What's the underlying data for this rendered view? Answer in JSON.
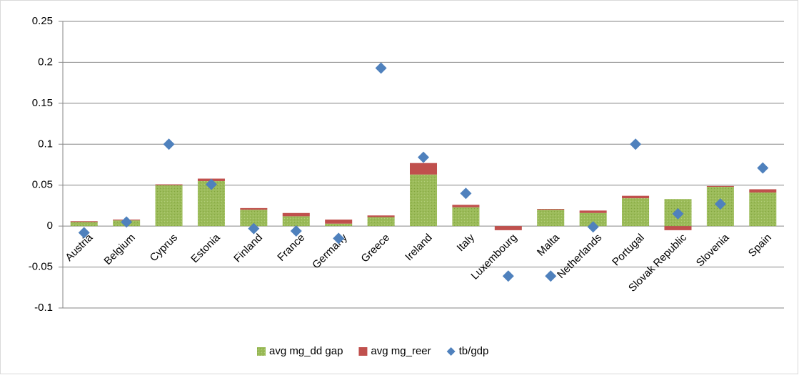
{
  "chart_data": {
    "type": "bar",
    "stacked": true,
    "grid": true,
    "legend": "bottom",
    "categories": [
      "Austria",
      "Belgium",
      "Cyprus",
      "Estonia",
      "Finland",
      "France",
      "Germany",
      "Greece",
      "Ireland",
      "Italy",
      "Luxembourg",
      "Malta",
      "Netherlands",
      "Portugal",
      "Slovak Republic",
      "Slovenia",
      "Spain"
    ],
    "series": [
      {
        "name": "avg mg_dd gap",
        "color": "#9bbb59",
        "values": [
          0.005,
          0.007,
          0.05,
          0.055,
          0.02,
          0.012,
          0.003,
          0.011,
          0.063,
          0.023,
          0,
          0.02,
          0.016,
          0.034,
          0.033,
          0.048,
          0.041
        ]
      },
      {
        "name": "avg mg_reer",
        "color": "#c0504d",
        "values": [
          0.001,
          0.001,
          0.001,
          0.003,
          0.002,
          0.004,
          0.005,
          0.002,
          0.014,
          0.003,
          -0.005,
          0.001,
          0.003,
          0.003,
          -0.005,
          0.001,
          0.004
        ]
      },
      {
        "name": "tb/gdp",
        "color": "#4f81bd",
        "type": "scatter",
        "values": [
          -0.008,
          0.005,
          0.1,
          0.051,
          -0.003,
          -0.006,
          -0.015,
          0.193,
          0.084,
          0.04,
          -0.061,
          -0.061,
          -0.001,
          0.1,
          0.015,
          0.027,
          0.071
        ]
      }
    ],
    "ylim": [
      -0.1,
      0.25
    ],
    "yticks": [
      -0.1,
      -0.05,
      0,
      0.05,
      0.1,
      0.15,
      0.2,
      0.25
    ]
  }
}
